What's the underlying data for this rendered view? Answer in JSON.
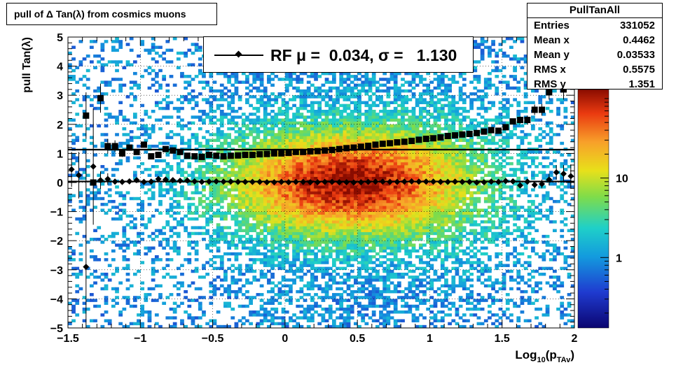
{
  "chart_data": {
    "type": "heatmap",
    "title": "pull of Δ Tan(λ) from cosmics muons",
    "xlabel": "Log10(pTAv)",
    "xlabel_main": "Log",
    "xlabel_sub1": "10",
    "xlabel_mid": "(p",
    "xlabel_sub2": "TAv",
    "xlabel_end": ")",
    "ylabel": "pull Tan(λ)",
    "xlim": [
      -1.5,
      2.0
    ],
    "ylim": [
      -5,
      5
    ],
    "x_ticks": [
      -1.5,
      -1.0,
      -0.5,
      0.0,
      0.5,
      1.0,
      1.5,
      2.0
    ],
    "x_tick_labels": [
      "−1.5",
      "−1",
      "−0.5",
      "0",
      "0.5",
      "1",
      "1.5",
      "2"
    ],
    "y_ticks": [
      -5,
      -4,
      -3,
      -2,
      -1,
      0,
      1,
      2,
      3,
      4,
      5
    ],
    "y_tick_labels": [
      "−5",
      "−4",
      "−3",
      "−2",
      "−1",
      "0",
      "1",
      "2",
      "3",
      "4",
      "5"
    ],
    "grid": true,
    "colorbar": {
      "scale": "log",
      "tick_values": [
        1,
        10
      ],
      "tick_labels": [
        "1",
        "10"
      ]
    },
    "legend": {
      "position": "top-center",
      "entry": "RF μ =  0.034, σ =   1.130"
    },
    "stats": {
      "title": "PullTanAll",
      "rows": [
        {
          "key": "Entries",
          "value": "331052"
        },
        {
          "key": "Mean x",
          "value": "0.4462"
        },
        {
          "key": "Mean y",
          "value": "0.03533"
        },
        {
          "key": "RMS x",
          "value": "0.5575"
        },
        {
          "key": "RMS y",
          "value": "1.351"
        }
      ]
    },
    "series": [
      {
        "marker": "diamond",
        "role": "mean",
        "x": [
          -1.475,
          -1.425,
          -1.375,
          -1.325,
          -1.275,
          -1.225,
          -1.175,
          -1.125,
          -1.075,
          -1.025,
          -0.975,
          -0.925,
          -0.875,
          -0.825,
          -0.775,
          -0.725,
          -0.675,
          -0.625,
          -0.575,
          -0.525,
          -0.475,
          -0.425,
          -0.375,
          -0.325,
          -0.275,
          -0.225,
          -0.175,
          -0.125,
          -0.075,
          -0.025,
          0.025,
          0.075,
          0.125,
          0.175,
          0.225,
          0.275,
          0.325,
          0.375,
          0.425,
          0.475,
          0.525,
          0.575,
          0.625,
          0.675,
          0.725,
          0.775,
          0.825,
          0.875,
          0.925,
          0.975,
          1.025,
          1.075,
          1.125,
          1.175,
          1.225,
          1.275,
          1.325,
          1.375,
          1.425,
          1.475,
          1.525,
          1.575,
          1.625,
          1.675,
          1.725,
          1.775,
          1.825,
          1.875,
          1.925,
          1.975
        ],
        "y": [
          0.45,
          0.25,
          -2.9,
          0.55,
          0.08,
          0.12,
          0.03,
          0.02,
          0.04,
          0.08,
          0.02,
          0.03,
          0.12,
          0.1,
          0.08,
          0.06,
          0.07,
          0.04,
          0.02,
          0.03,
          0.04,
          0.03,
          0.03,
          0.02,
          0.02,
          0.02,
          0.02,
          0.01,
          0.01,
          0.02,
          0.01,
          0.02,
          0.02,
          0.01,
          0.01,
          0.02,
          0.02,
          0.01,
          0.01,
          0.0,
          0.01,
          0.02,
          0.03,
          0.03,
          0.02,
          0.02,
          0.03,
          0.04,
          0.03,
          0.03,
          0.03,
          0.02,
          0.02,
          0.03,
          0.02,
          0.02,
          0.0,
          0.01,
          0.03,
          0.02,
          0.05,
          0.04,
          -0.1,
          0.03,
          -0.08,
          -0.05,
          0.1,
          0.35,
          0.3,
          0.22
        ],
        "yerr": [
          0.6,
          0.8,
          4.0,
          2.0,
          0.3,
          0.2,
          0.1,
          0.1,
          0.08,
          0.06,
          0.05,
          0.05,
          0.04,
          0.04,
          0.03,
          0.03,
          0.02,
          0.02,
          0.02,
          0.02,
          0.01,
          0.01,
          0.01,
          0.01,
          0.01,
          0.01,
          0.01,
          0.01,
          0.01,
          0.01,
          0.01,
          0.01,
          0.01,
          0.01,
          0.01,
          0.01,
          0.01,
          0.01,
          0.01,
          0.01,
          0.01,
          0.01,
          0.01,
          0.01,
          0.01,
          0.01,
          0.01,
          0.01,
          0.01,
          0.01,
          0.01,
          0.01,
          0.01,
          0.02,
          0.02,
          0.02,
          0.02,
          0.03,
          0.03,
          0.04,
          0.05,
          0.06,
          0.08,
          0.1,
          0.12,
          0.15,
          0.2,
          0.25,
          0.3,
          0.4
        ]
      },
      {
        "marker": "square",
        "role": "rms",
        "x": [
          -1.375,
          -1.325,
          -1.275,
          -1.225,
          -1.175,
          -1.125,
          -1.075,
          -1.025,
          -0.975,
          -0.925,
          -0.875,
          -0.825,
          -0.775,
          -0.725,
          -0.675,
          -0.625,
          -0.575,
          -0.525,
          -0.475,
          -0.425,
          -0.375,
          -0.325,
          -0.275,
          -0.225,
          -0.175,
          -0.125,
          -0.075,
          -0.025,
          0.025,
          0.075,
          0.125,
          0.175,
          0.225,
          0.275,
          0.325,
          0.375,
          0.425,
          0.475,
          0.525,
          0.575,
          0.625,
          0.675,
          0.725,
          0.775,
          0.825,
          0.875,
          0.925,
          0.975,
          1.025,
          1.075,
          1.125,
          1.175,
          1.225,
          1.275,
          1.325,
          1.375,
          1.425,
          1.475,
          1.525,
          1.575,
          1.625,
          1.675,
          1.725,
          1.775,
          1.825,
          1.875,
          1.925,
          1.975
        ],
        "y": [
          2.3,
          0.0,
          2.9,
          1.25,
          1.25,
          1.0,
          1.2,
          1.05,
          1.3,
          0.9,
          0.95,
          1.15,
          1.1,
          1.05,
          0.92,
          0.9,
          0.88,
          0.95,
          0.92,
          0.9,
          0.92,
          0.93,
          0.95,
          0.95,
          0.97,
          0.98,
          1.0,
          1.0,
          1.02,
          1.05,
          1.05,
          1.07,
          1.08,
          1.1,
          1.12,
          1.15,
          1.18,
          1.2,
          1.23,
          1.26,
          1.3,
          1.33,
          1.35,
          1.38,
          1.4,
          1.43,
          1.47,
          1.5,
          1.52,
          1.55,
          1.6,
          1.62,
          1.65,
          1.67,
          1.7,
          1.75,
          1.8,
          1.78,
          1.9,
          2.1,
          2.15,
          2.15,
          2.5,
          2.5,
          3.1,
          3.7,
          3.2,
          4.3
        ],
        "yerr": [
          0.8,
          0.0,
          0.5,
          0.25,
          0.2,
          0.12,
          0.1,
          0.08,
          0.06,
          0.05,
          0.04,
          0.04,
          0.03,
          0.03,
          0.02,
          0.02,
          0.02,
          0.01,
          0.01,
          0.01,
          0.01,
          0.01,
          0.01,
          0.01,
          0.01,
          0.01,
          0.01,
          0.01,
          0.01,
          0.01,
          0.01,
          0.01,
          0.01,
          0.01,
          0.01,
          0.01,
          0.01,
          0.01,
          0.01,
          0.01,
          0.01,
          0.01,
          0.01,
          0.01,
          0.01,
          0.02,
          0.02,
          0.02,
          0.02,
          0.02,
          0.03,
          0.03,
          0.03,
          0.04,
          0.04,
          0.05,
          0.06,
          0.07,
          0.08,
          0.1,
          0.12,
          0.15,
          0.18,
          0.2,
          0.25,
          0.3,
          0.35,
          0.45
        ]
      }
    ],
    "fit_lines": [
      {
        "role": "mean-fit",
        "y": 0.034
      },
      {
        "role": "sigma-fit",
        "y": 1.13
      }
    ]
  }
}
